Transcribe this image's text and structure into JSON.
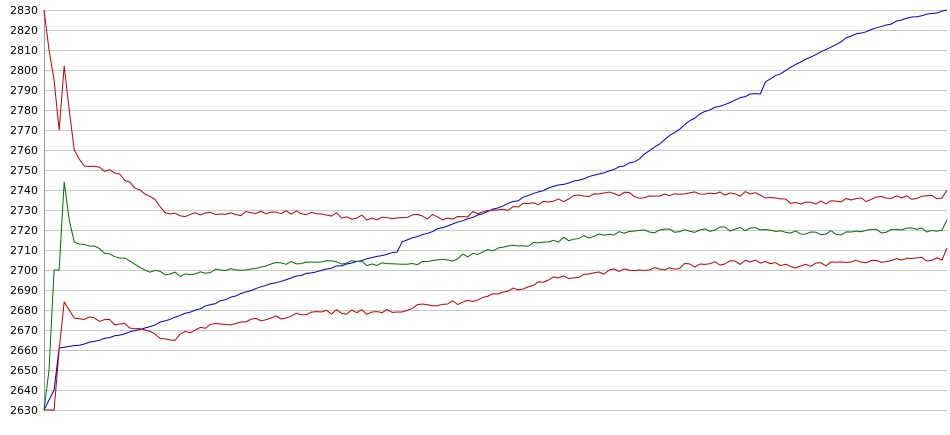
{
  "chart_data": {
    "type": "line",
    "title": "",
    "xlabel": "",
    "ylabel": "",
    "ylim": [
      2630,
      2830
    ],
    "y_ticks": [
      2830,
      2820,
      2810,
      2800,
      2790,
      2780,
      2770,
      2760,
      2750,
      2740,
      2730,
      2720,
      2710,
      2700,
      2690,
      2680,
      2670,
      2660,
      2650,
      2640,
      2630
    ],
    "grid": true,
    "legend": "none",
    "x_points": 180,
    "series": [
      {
        "color": "#0000cc",
        "anchors": [
          [
            0,
            2630
          ],
          [
            2,
            2640
          ],
          [
            3,
            2661
          ],
          [
            8,
            2663
          ],
          [
            20,
            2671
          ],
          [
            30,
            2680
          ],
          [
            40,
            2689
          ],
          [
            50,
            2697
          ],
          [
            60,
            2703
          ],
          [
            70,
            2709
          ],
          [
            70.5,
            2714
          ],
          [
            80,
            2722
          ],
          [
            90,
            2731
          ],
          [
            100,
            2741
          ],
          [
            110,
            2748
          ],
          [
            117,
            2754
          ],
          [
            130,
            2778
          ],
          [
            140,
            2788
          ],
          [
            142,
            2788
          ],
          [
            143,
            2794
          ],
          [
            150,
            2804
          ],
          [
            160,
            2817
          ],
          [
            170,
            2825
          ],
          [
            179,
            2830
          ]
        ],
        "noise": 0.4
      },
      {
        "color": "#c00000",
        "anchors": [
          [
            0,
            2830
          ],
          [
            1,
            2810
          ],
          [
            2,
            2795
          ],
          [
            3,
            2770
          ],
          [
            4,
            2802
          ],
          [
            5,
            2780
          ],
          [
            6,
            2760
          ],
          [
            8,
            2752
          ],
          [
            15,
            2748
          ],
          [
            20,
            2738
          ],
          [
            25,
            2728
          ],
          [
            35,
            2728
          ],
          [
            45,
            2729
          ],
          [
            55,
            2728
          ],
          [
            65,
            2726
          ],
          [
            70,
            2726
          ],
          [
            75,
            2727
          ],
          [
            80,
            2726
          ],
          [
            90,
            2730
          ],
          [
            100,
            2734
          ],
          [
            110,
            2738
          ],
          [
            120,
            2737
          ],
          [
            130,
            2738
          ],
          [
            140,
            2738
          ],
          [
            150,
            2733
          ],
          [
            160,
            2735
          ],
          [
            170,
            2736
          ],
          [
            178,
            2736
          ],
          [
            179,
            2740
          ]
        ],
        "noise": 1.4
      },
      {
        "color": "#007000",
        "anchors": [
          [
            0,
            2630
          ],
          [
            1,
            2650
          ],
          [
            2,
            2700
          ],
          [
            3,
            2700
          ],
          [
            4,
            2744
          ],
          [
            5,
            2725
          ],
          [
            6,
            2714
          ],
          [
            10,
            2712
          ],
          [
            15,
            2706
          ],
          [
            20,
            2700
          ],
          [
            25,
            2698
          ],
          [
            30,
            2698
          ],
          [
            35,
            2700
          ],
          [
            40,
            2700
          ],
          [
            45,
            2703
          ],
          [
            55,
            2704
          ],
          [
            65,
            2703
          ],
          [
            70,
            2703
          ],
          [
            80,
            2705
          ],
          [
            90,
            2711
          ],
          [
            100,
            2714
          ],
          [
            110,
            2718
          ],
          [
            120,
            2719
          ],
          [
            130,
            2720
          ],
          [
            140,
            2721
          ],
          [
            150,
            2718
          ],
          [
            160,
            2719
          ],
          [
            170,
            2720
          ],
          [
            178,
            2720
          ],
          [
            179,
            2725
          ]
        ],
        "noise": 1.3
      },
      {
        "color": "#c00000",
        "anchors": [
          [
            0,
            2630
          ],
          [
            2,
            2630
          ],
          [
            3,
            2660
          ],
          [
            4,
            2684
          ],
          [
            5,
            2680
          ],
          [
            6,
            2676
          ],
          [
            10,
            2676
          ],
          [
            15,
            2673
          ],
          [
            20,
            2670
          ],
          [
            25,
            2665
          ],
          [
            30,
            2670
          ],
          [
            35,
            2673
          ],
          [
            40,
            2674
          ],
          [
            45,
            2676
          ],
          [
            55,
            2679
          ],
          [
            65,
            2679
          ],
          [
            70,
            2679
          ],
          [
            75,
            2683
          ],
          [
            80,
            2683
          ],
          [
            90,
            2688
          ],
          [
            100,
            2695
          ],
          [
            110,
            2699
          ],
          [
            120,
            2700
          ],
          [
            130,
            2703
          ],
          [
            140,
            2704
          ],
          [
            150,
            2702
          ],
          [
            160,
            2704
          ],
          [
            170,
            2705
          ],
          [
            178,
            2705
          ],
          [
            179,
            2711
          ]
        ],
        "noise": 1.3
      }
    ]
  }
}
